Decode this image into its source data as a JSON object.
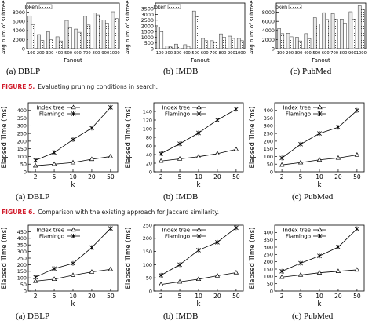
{
  "figure5": {
    "label": "FIGURE 5.",
    "caption": "Evaluating pruning conditions in search."
  },
  "figure6": {
    "label": "FIGURE 6.",
    "caption": "Comparison with the existing approach for Jaccard similarity."
  },
  "chart_data": [
    {
      "id": "f5a",
      "type": "bar",
      "subcaption": "(a)  DBLP",
      "categories": [
        "100",
        "200",
        "300",
        "400",
        "500",
        "600",
        "700",
        "800",
        "900",
        "1000"
      ],
      "xlabel": "Fanout",
      "ylabel": "Avg num of subtrees",
      "ylim": [
        0,
        10000
      ],
      "yticks": [
        "0",
        "2000",
        "4000",
        "6000",
        "8000"
      ],
      "legend": [
        "Token"
      ],
      "series": [
        {
          "values": [
            7200,
            3100,
            3700,
            2600,
            6200,
            4300,
            7100,
            7800,
            6300,
            8100
          ]
        },
        {
          "name": "Token",
          "values": [
            5300,
            1800,
            2000,
            1700,
            4600,
            3600,
            5200,
            7400,
            5600,
            6600
          ]
        }
      ]
    },
    {
      "id": "f5b",
      "type": "bar",
      "subcaption": "(b)  IMDB",
      "categories": [
        "100",
        "200",
        "300",
        "400",
        "500",
        "600",
        "700",
        "800",
        "900",
        "1000"
      ],
      "xlabel": "Fanout",
      "ylabel": "Avg num of subtrees",
      "ylim": [
        0,
        4000
      ],
      "yticks": [
        "0",
        "500",
        "1000",
        "1500",
        "2000",
        "2500",
        "3000",
        "3500"
      ],
      "legend": [
        "Token"
      ],
      "series": [
        {
          "values": [
            1900,
            250,
            400,
            350,
            3300,
            900,
            700,
            1300,
            1100,
            900
          ]
        },
        {
          "name": "Token",
          "values": [
            1500,
            150,
            250,
            200,
            2800,
            700,
            550,
            1000,
            900,
            700
          ]
        }
      ]
    },
    {
      "id": "f5c",
      "type": "bar",
      "subcaption": "(c)  PubMed",
      "categories": [
        "100",
        "200",
        "300",
        "400",
        "500",
        "600",
        "700",
        "800",
        "900",
        "1000"
      ],
      "xlabel": "Fanout",
      "ylabel": "Avg num of subtrees",
      "ylim": [
        0,
        10000
      ],
      "yticks": [
        "0",
        "2000",
        "4000",
        "6000",
        "8000"
      ],
      "legend": [
        "Token"
      ],
      "series": [
        {
          "values": [
            4400,
            3400,
            2500,
            3300,
            6800,
            7900,
            7700,
            6500,
            8100,
            9400
          ]
        },
        {
          "name": "Token",
          "values": [
            3300,
            2600,
            1700,
            2200,
            5400,
            6400,
            6500,
            5600,
            6500,
            8600
          ]
        }
      ]
    },
    {
      "id": "f6a",
      "type": "line",
      "subcaption": "(a)  DBLP",
      "categories": [
        "2",
        "5",
        "10",
        "20",
        "50"
      ],
      "xlabel": "k",
      "ylabel": "Elapsed Time (ms)",
      "ylim": [
        0,
        450
      ],
      "yticks": [
        "0",
        "50",
        "100",
        "150",
        "200",
        "250",
        "300",
        "350",
        "400"
      ],
      "series": [
        {
          "name": "Index tree",
          "marker": "triangle",
          "values": [
            40,
            50,
            60,
            82,
            100
          ]
        },
        {
          "name": "Flamingo",
          "marker": "star",
          "values": [
            75,
            125,
            210,
            285,
            420
          ]
        }
      ]
    },
    {
      "id": "f6b",
      "type": "line",
      "subcaption": "(b)  IMDB",
      "categories": [
        "2",
        "5",
        "10",
        "20",
        "50"
      ],
      "xlabel": "k",
      "ylabel": "Elapsed Time (ms)",
      "ylim": [
        0,
        160
      ],
      "yticks": [
        "0",
        "20",
        "40",
        "60",
        "80",
        "100",
        "120",
        "140"
      ],
      "series": [
        {
          "name": "Index tree",
          "marker": "triangle",
          "values": [
            25,
            30,
            35,
            42,
            52
          ]
        },
        {
          "name": "Flamingo",
          "marker": "star",
          "values": [
            42,
            65,
            90,
            120,
            145
          ]
        }
      ]
    },
    {
      "id": "f6c",
      "type": "line",
      "subcaption": "(c)  PubMed",
      "categories": [
        "2",
        "5",
        "10",
        "20",
        "50"
      ],
      "xlabel": "k",
      "ylabel": "Elapsed Time (ms)",
      "ylim": [
        0,
        450
      ],
      "yticks": [
        "0",
        "50",
        "100",
        "150",
        "200",
        "250",
        "300",
        "350",
        "400"
      ],
      "series": [
        {
          "name": "Index tree",
          "marker": "triangle",
          "values": [
            45,
            60,
            78,
            90,
            110
          ]
        },
        {
          "name": "Flamingo",
          "marker": "star",
          "values": [
            90,
            180,
            250,
            290,
            400
          ]
        }
      ]
    },
    {
      "id": "f7a",
      "type": "line",
      "subcaption": "(a)  DBLP",
      "categories": [
        "2",
        "5",
        "10",
        "20",
        "50"
      ],
      "xlabel": "k",
      "ylabel": "Elapsed Time (ms)",
      "ylim": [
        0,
        500
      ],
      "yticks": [
        "0",
        "50",
        "100",
        "150",
        "200",
        "250",
        "300",
        "350",
        "400",
        "450"
      ],
      "series": [
        {
          "name": "Index tree",
          "marker": "triangle",
          "values": [
            75,
            90,
            120,
            145,
            165
          ]
        },
        {
          "name": "Flamingo",
          "marker": "star",
          "values": [
            105,
            170,
            210,
            330,
            475
          ]
        }
      ]
    },
    {
      "id": "f7b",
      "type": "line",
      "subcaption": "(b)  IMDB",
      "categories": [
        "2",
        "5",
        "10",
        "20",
        "50"
      ],
      "xlabel": "k",
      "ylabel": "Elapsed Time (ms)",
      "ylim": [
        0,
        250
      ],
      "yticks": [
        "0",
        "50",
        "100",
        "150",
        "200",
        "250"
      ],
      "series": [
        {
          "name": "Index tree",
          "marker": "triangle",
          "values": [
            25,
            35,
            45,
            58,
            70
          ]
        },
        {
          "name": "Flamingo",
          "marker": "star",
          "values": [
            60,
            100,
            155,
            185,
            240
          ]
        }
      ]
    },
    {
      "id": "f7c",
      "type": "line",
      "subcaption": "(c)  PubMed",
      "categories": [
        "2",
        "5",
        "10",
        "20",
        "50"
      ],
      "xlabel": "k",
      "ylabel": "Elapsed Time (ms)",
      "ylim": [
        0,
        450
      ],
      "yticks": [
        "0",
        "50",
        "100",
        "150",
        "200",
        "250",
        "300",
        "350",
        "400"
      ],
      "series": [
        {
          "name": "Index tree",
          "marker": "triangle",
          "values": [
            95,
            110,
            125,
            135,
            145
          ]
        },
        {
          "name": "Flamingo",
          "marker": "star",
          "values": [
            135,
            190,
            240,
            300,
            425
          ]
        }
      ]
    }
  ]
}
